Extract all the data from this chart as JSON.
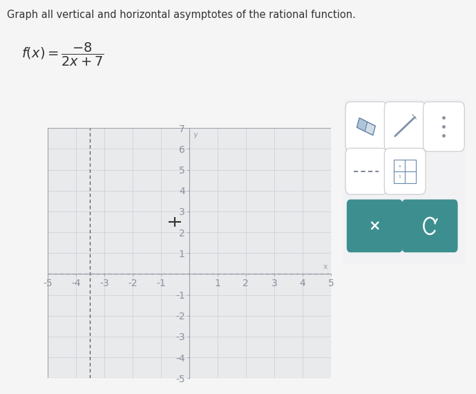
{
  "title": "Graph all vertical and horizontal asymptotes of the rational function.",
  "formula_display": "$f(x)=\\dfrac{-8}{2x+7}$",
  "xmin": -5,
  "xmax": 5,
  "ymin": -5,
  "ymax": 7,
  "xticks": [
    -5,
    -4,
    -3,
    -2,
    -1,
    1,
    2,
    3,
    4,
    5
  ],
  "yticks": [
    -5,
    -4,
    -3,
    -2,
    -1,
    1,
    2,
    3,
    4,
    5,
    6,
    7
  ],
  "vertical_asymptote": -3.5,
  "horizontal_asymptote": 0,
  "grid_color": "#c8cdd6",
  "plot_bg_color": "#e9eaec",
  "axis_color": "#9aa0aa",
  "tick_label_color": "#8a909a",
  "asymptote_color": "#555555",
  "cursor_x": -0.5,
  "cursor_y": 2.5,
  "cursor_size": 0.22,
  "cursor_color": "#303030",
  "outer_bg": "#f5f5f5",
  "title_fontsize": 10.5,
  "formula_fontsize": 14,
  "tick_fontsize": 7.5,
  "teal_color": "#3d8f8f",
  "panel_bg": "#f2f2f4",
  "panel_border": "#d0d0d5",
  "btn_bg": "white",
  "btn_border": "#c8c8ce"
}
